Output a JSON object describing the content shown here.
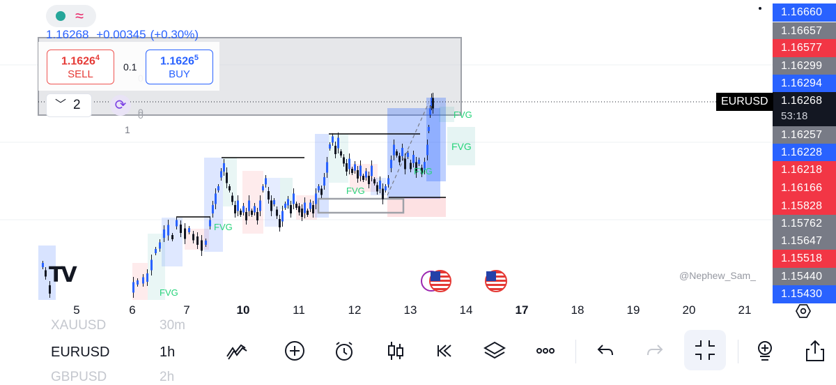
{
  "instrument": {
    "symbol": "EURUSD",
    "last_price": "1.16268",
    "change": "+0.00345",
    "change_pct": "(+0.30%)",
    "countdown": "53:18"
  },
  "trade_panel": {
    "sell_price_main": "1.1626",
    "sell_price_pip": "4",
    "sell_label": "SELL",
    "buy_price_main": "1.1626",
    "buy_price_pip": "5",
    "buy_label": "BUY",
    "spread": "0.1",
    "quantity": "2"
  },
  "price_scale": {
    "labels": [
      {
        "value": "1.16660",
        "color": "#2962ff"
      },
      {
        "value": "1.16657",
        "color": "#787b86"
      },
      {
        "value": "1.16577",
        "color": "#f23645"
      },
      {
        "value": "1.16299",
        "color": "#787b86"
      },
      {
        "value": "1.16294",
        "color": "#2962ff"
      },
      {
        "value": "1.16268",
        "color": "#131722"
      },
      {
        "value": "1.16257",
        "color": "#787b86"
      },
      {
        "value": "1.16228",
        "color": "#2962ff"
      },
      {
        "value": "1.16218",
        "color": "#f23645"
      },
      {
        "value": "1.16166",
        "color": "#f23645"
      },
      {
        "value": "1.15828",
        "color": "#f23645"
      },
      {
        "value": "1.15762",
        "color": "#787b86"
      },
      {
        "value": "1.15647",
        "color": "#787b86"
      },
      {
        "value": "1.15518",
        "color": "#f23645"
      },
      {
        "value": "1.15440",
        "color": "#787b86"
      },
      {
        "value": "1.15430",
        "color": "#2962ff"
      }
    ]
  },
  "chart_overlay_labels": {
    "fvg": "FVG",
    "axis_one": "1",
    "axis_zero": "0"
  },
  "time_axis": {
    "ticks": [
      {
        "label": "5",
        "bold": false
      },
      {
        "label": "6",
        "bold": false
      },
      {
        "label": "7",
        "bold": false
      },
      {
        "label": "10",
        "bold": true
      },
      {
        "label": "11",
        "bold": false
      },
      {
        "label": "12",
        "bold": false
      },
      {
        "label": "13",
        "bold": false
      },
      {
        "label": "14",
        "bold": false
      },
      {
        "label": "17",
        "bold": true
      },
      {
        "label": "18",
        "bold": false
      },
      {
        "label": "19",
        "bold": false
      },
      {
        "label": "20",
        "bold": false
      },
      {
        "label": "21",
        "bold": false
      }
    ]
  },
  "watermark": "@Nephew_Sam_",
  "toolbar": {
    "symbol_above": "XAUUSD",
    "symbol_current": "EURUSD",
    "symbol_below": "GBPUSD",
    "timeframe_above": "30m",
    "timeframe_current": "1h",
    "timeframe_below": "2h"
  },
  "icons": [
    "drawing-tools-icon",
    "add-icon",
    "alarm-icon",
    "candles-icon",
    "replay-icon",
    "layers-icon",
    "more-icon",
    "undo-icon",
    "redo-icon",
    "fullscreen-exit-icon",
    "object-tree-icon",
    "share-icon",
    "chart-settings-icon"
  ]
}
